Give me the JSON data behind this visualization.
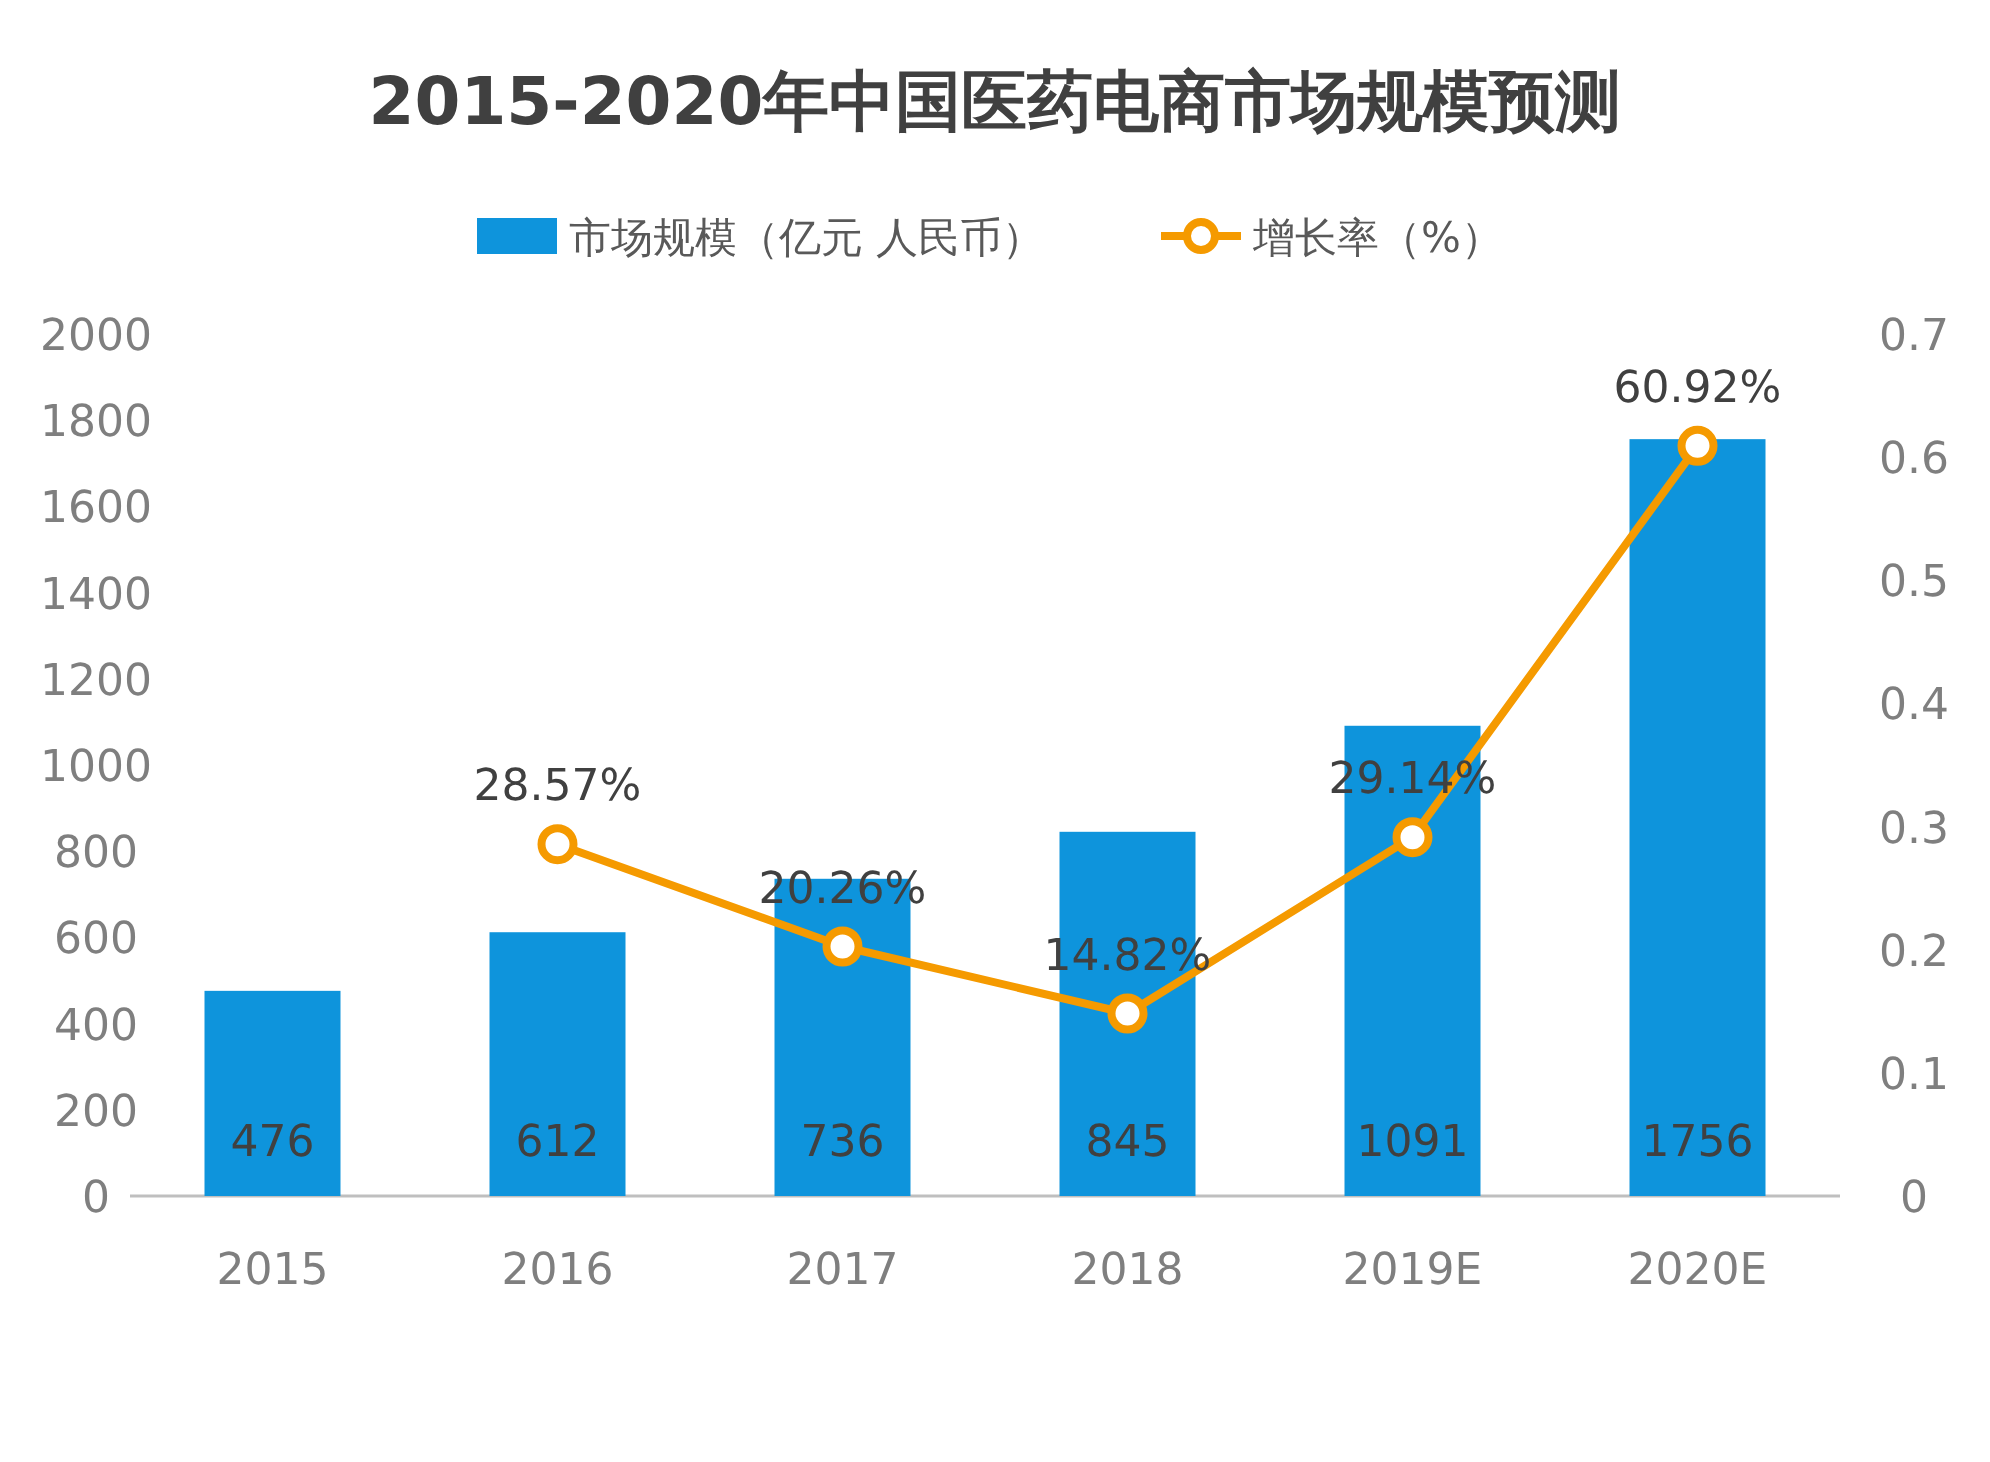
{
  "chart_data": {
    "type": "bar",
    "title": "2015-2020年中国医药电商市场规模预测",
    "categories": [
      "2015",
      "2016",
      "2017",
      "2018",
      "2019E",
      "2020E"
    ],
    "series": [
      {
        "name": "市场规模（亿元 人民币）",
        "color": "#0e94dc",
        "values": [
          476,
          612,
          736,
          845,
          1091,
          1756
        ],
        "value_labels": [
          "476",
          "612",
          "736",
          "845",
          "1091",
          "1756"
        ]
      },
      {
        "name": "增长率（%）",
        "type": "line",
        "axis": "y2",
        "color": "#f59a00",
        "marker": "circle",
        "values": [
          null,
          0.2857,
          0.2026,
          0.1482,
          0.2914,
          0.6092
        ],
        "value_labels": [
          null,
          "28.57%",
          "20.26%",
          "14.82%",
          "29.14%",
          "60.92%"
        ]
      }
    ],
    "ylim": [
      0,
      2000
    ],
    "yticks": [
      0,
      200,
      400,
      600,
      800,
      1000,
      1200,
      1400,
      1600,
      1800,
      2000
    ],
    "y2lim": [
      0,
      0.7
    ],
    "y2ticks": [
      0,
      0.1,
      0.2,
      0.3,
      0.4,
      0.5,
      0.6,
      0.7
    ],
    "legend": "top"
  }
}
